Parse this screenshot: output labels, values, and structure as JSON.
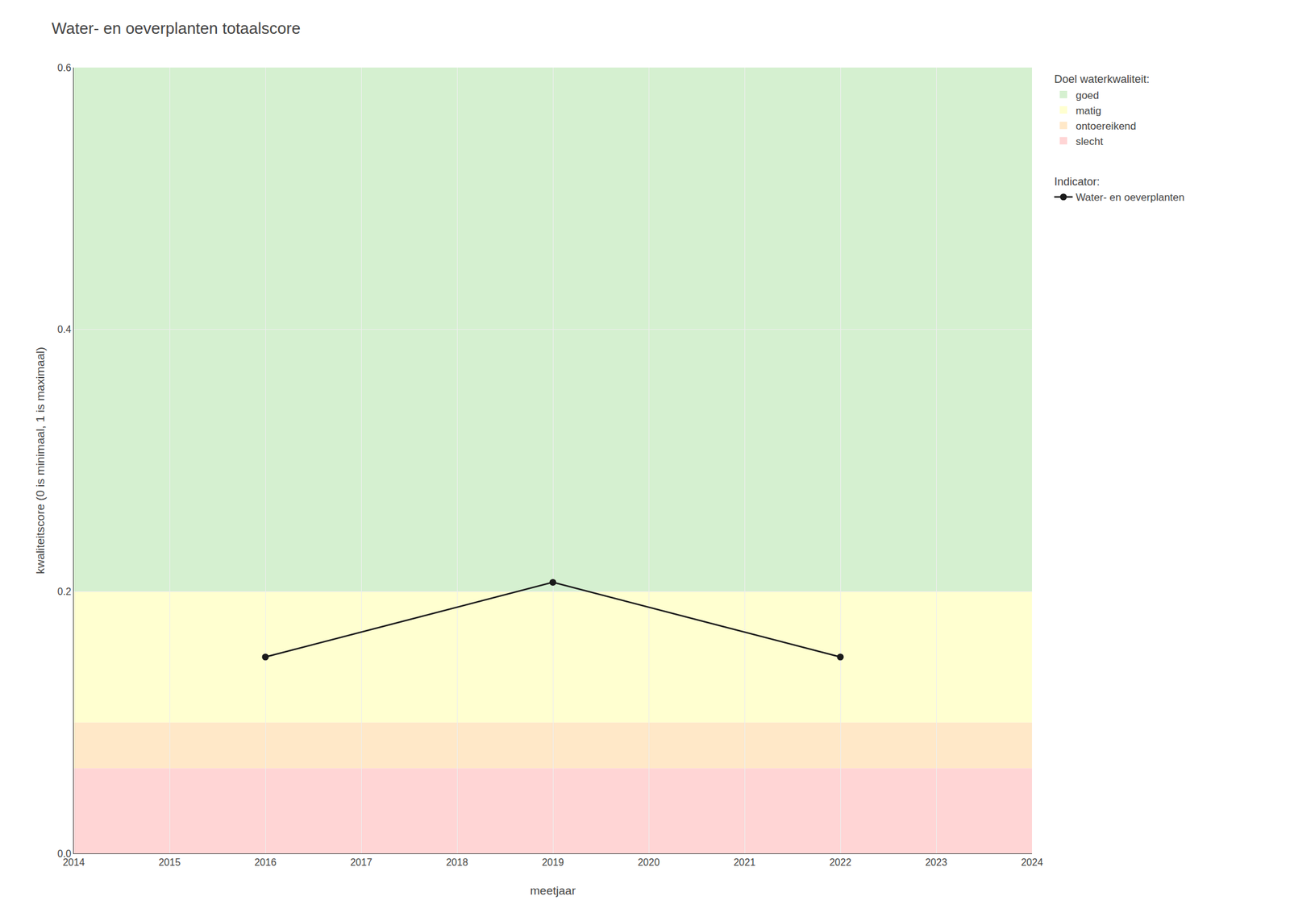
{
  "chart_data": {
    "type": "line",
    "title": "Water- en oeverplanten totaalscore",
    "x_label": "meetjaar",
    "y_label": "kwaliteitscore (0 is minimaal, 1 is maximaal)",
    "x": [
      2016,
      2019,
      2022
    ],
    "series": [
      {
        "name": "Water- en oeverplanten",
        "color": "#1a1a1a",
        "marker": "circle",
        "line_style": "solid",
        "values": [
          0.15,
          0.207,
          0.15
        ]
      }
    ],
    "series_title": "Indicator:",
    "zones_title": "Doel waterkwaliteit:",
    "zones": [
      {
        "name": "goed",
        "ymin": 0.2,
        "ymax": 0.6,
        "color": "#d5f0d0"
      },
      {
        "name": "matig",
        "ymin": 0.1,
        "ymax": 0.2,
        "color": "#ffffd0"
      },
      {
        "name": "ontoereikend",
        "ymin": 0.065,
        "ymax": 0.1,
        "color": "#ffe8c8"
      },
      {
        "name": "slecht",
        "ymin": 0.0,
        "ymax": 0.065,
        "color": "#ffd5d5"
      }
    ],
    "xlim": [
      2014,
      2024
    ],
    "xticks": [
      2014,
      2015,
      2016,
      2017,
      2018,
      2019,
      2020,
      2021,
      2022,
      2023,
      2024
    ],
    "ylim": [
      0.0,
      0.6
    ],
    "yticks": [
      {
        "value": 0.0,
        "label": "0.0"
      },
      0.2,
      0.4,
      0.6
    ],
    "grid": true,
    "legend": "right"
  }
}
